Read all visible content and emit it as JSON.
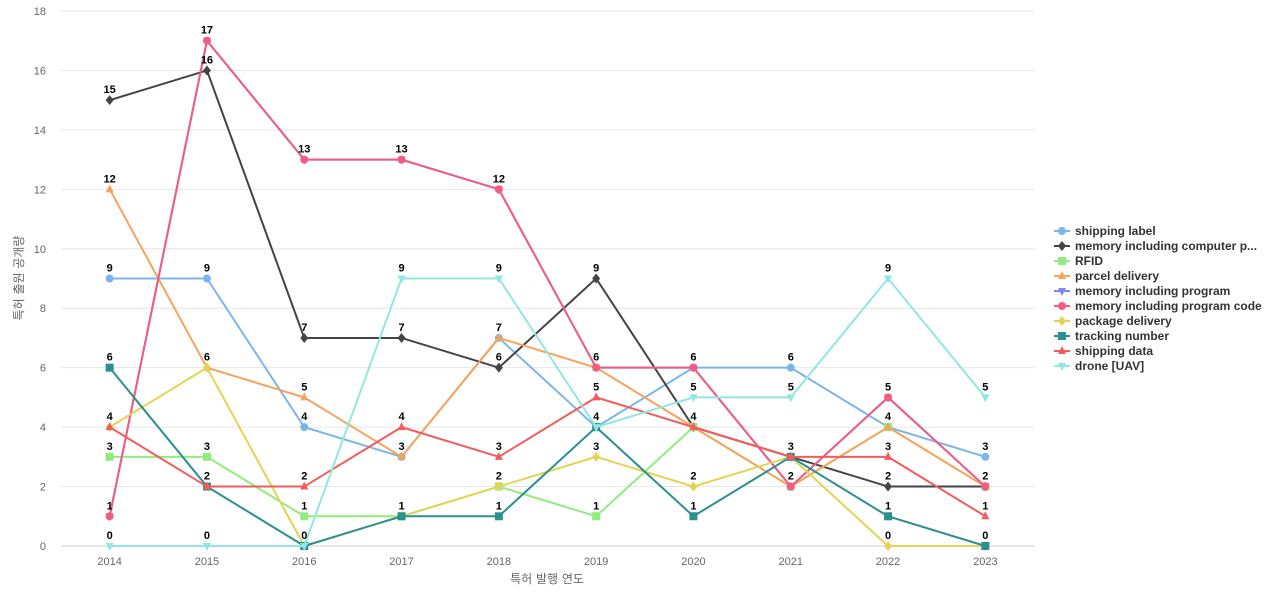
{
  "chart_data": {
    "type": "line",
    "title": "",
    "xlabel": "특허 발행 연도",
    "ylabel": "특허 출원 공개량",
    "x": [
      "2014",
      "2015",
      "2016",
      "2017",
      "2018",
      "2019",
      "2020",
      "2021",
      "2022",
      "2023"
    ],
    "ylim": [
      0,
      18
    ],
    "yticks": [
      0,
      2,
      4,
      6,
      8,
      10,
      12,
      14,
      16,
      18
    ],
    "grid": true,
    "legend_position": "right",
    "series": [
      {
        "name": "shipping label",
        "color": "#7cb5ec",
        "marker": "circle",
        "values": [
          9,
          9,
          4,
          3,
          7,
          4,
          6,
          6,
          4,
          3
        ]
      },
      {
        "name": "memory including computer p...",
        "color": "#434348",
        "marker": "diamond",
        "values": [
          15,
          16,
          7,
          7,
          6,
          9,
          4,
          3,
          2,
          2
        ]
      },
      {
        "name": "RFID",
        "color": "#90ed7d",
        "marker": "square",
        "values": [
          3,
          3,
          1,
          1,
          2,
          1,
          4,
          2,
          4,
          2
        ]
      },
      {
        "name": "parcel delivery",
        "color": "#f7a35c",
        "marker": "triangle",
        "values": [
          12,
          6,
          5,
          3,
          7,
          6,
          4,
          2,
          4,
          2
        ]
      },
      {
        "name": "memory including program",
        "color": "#8085e9",
        "marker": "triangle-down",
        "values": [
          1,
          17,
          13,
          13,
          12,
          6,
          6,
          2,
          5,
          2
        ]
      },
      {
        "name": "memory including program code",
        "color": "#f15c80",
        "marker": "circle",
        "values": [
          1,
          17,
          13,
          13,
          12,
          6,
          6,
          2,
          5,
          2
        ]
      },
      {
        "name": "package delivery",
        "color": "#e4d354",
        "marker": "diamond",
        "values": [
          4,
          6,
          0,
          1,
          2,
          3,
          2,
          3,
          0,
          0
        ]
      },
      {
        "name": "tracking number",
        "color": "#2b908f",
        "marker": "square",
        "values": [
          6,
          2,
          0,
          1,
          1,
          4,
          1,
          3,
          1,
          0
        ]
      },
      {
        "name": "shipping data",
        "color": "#f45b5b",
        "marker": "triangle",
        "values": [
          4,
          2,
          2,
          4,
          3,
          5,
          4,
          3,
          3,
          1
        ]
      },
      {
        "name": "drone [UAV]",
        "color": "#91e8e1",
        "marker": "triangle-down",
        "values": [
          0,
          0,
          0,
          9,
          9,
          4,
          5,
          5,
          9,
          5
        ]
      }
    ],
    "data_labels": [
      {
        "x": "2014",
        "values": [
          15,
          12,
          9,
          6,
          4,
          3,
          1,
          0
        ]
      },
      {
        "x": "2015",
        "values": [
          17,
          16,
          9,
          6,
          3,
          2,
          0
        ]
      },
      {
        "x": "2016",
        "values": [
          13,
          7,
          5,
          4,
          2,
          1,
          0
        ]
      },
      {
        "x": "2017",
        "values": [
          13,
          9,
          7,
          4,
          3,
          1
        ]
      },
      {
        "x": "2018",
        "values": [
          12,
          9,
          7,
          6,
          3,
          2,
          1
        ]
      },
      {
        "x": "2019",
        "values": [
          9,
          6,
          5,
          4,
          3,
          1
        ]
      },
      {
        "x": "2020",
        "values": [
          6,
          5,
          4,
          2,
          1
        ]
      },
      {
        "x": "2021",
        "values": [
          6,
          5,
          3,
          2
        ]
      },
      {
        "x": "2022",
        "values": [
          9,
          5,
          4,
          3,
          2,
          1,
          0
        ]
      },
      {
        "x": "2023",
        "values": [
          5,
          3,
          2,
          1,
          0
        ]
      }
    ]
  }
}
